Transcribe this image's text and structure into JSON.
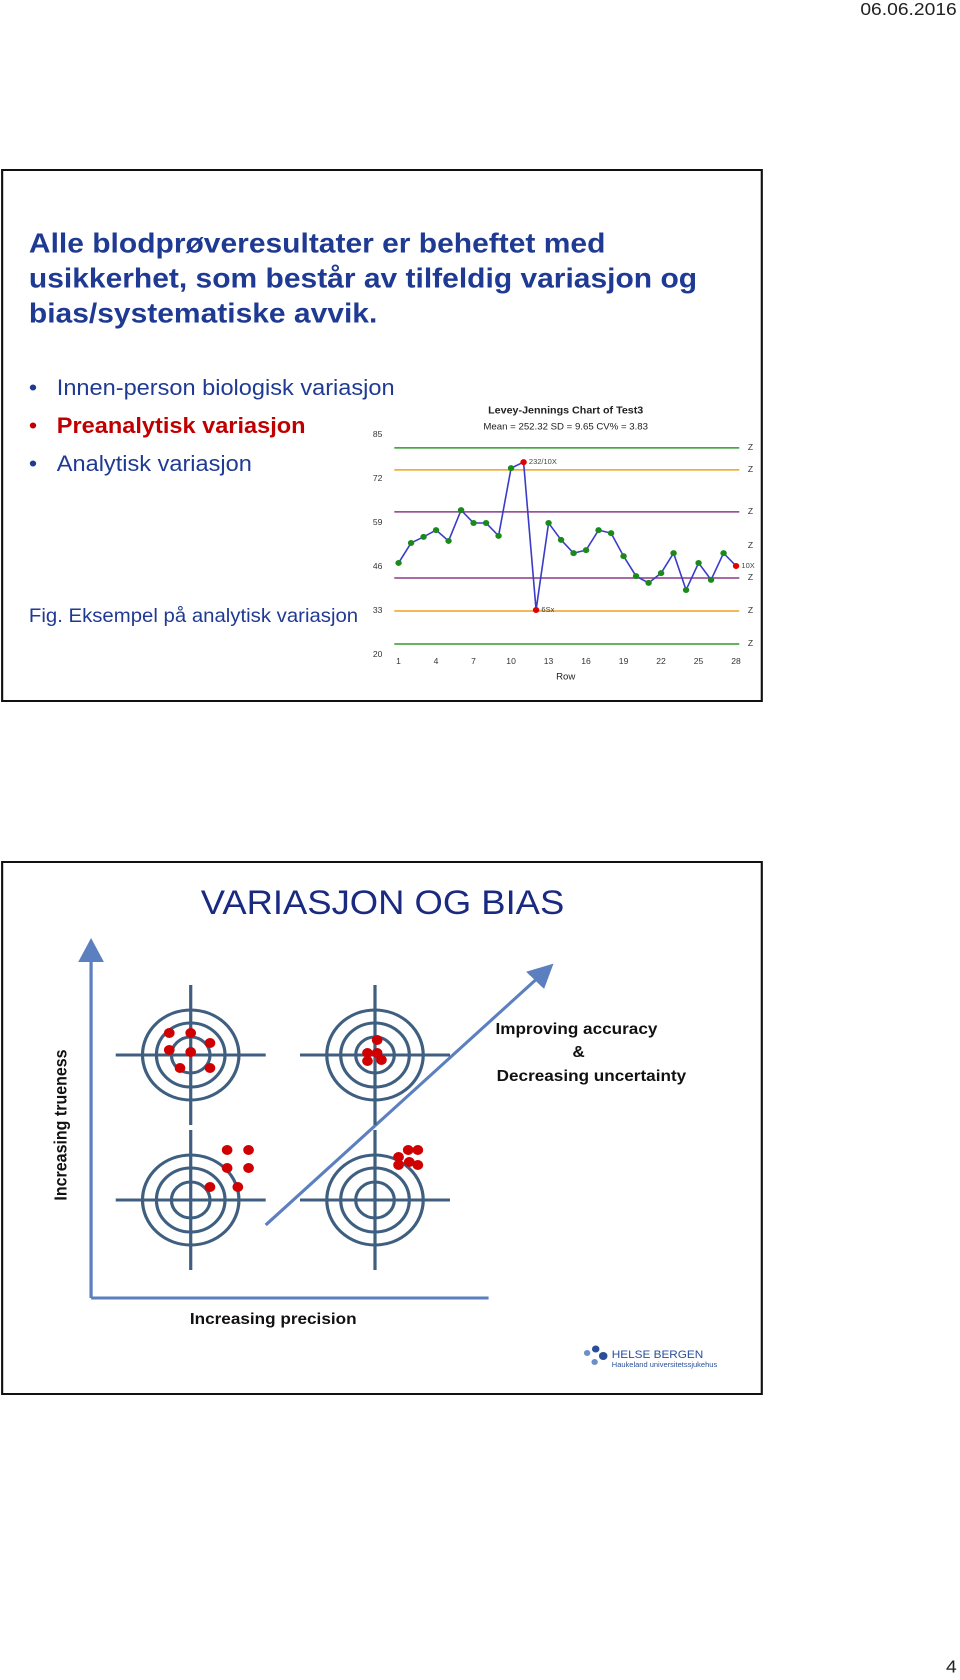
{
  "header": {
    "date": "06.06.2016"
  },
  "slide1": {
    "title_lines": [
      "Alle blodprøveresultater er beheftet med",
      "usikkerhet, som består av tilfeldig variasjon og",
      "bias/systematiske avvik."
    ],
    "bullets": [
      "Innen-person biologisk variasjon",
      "Preanalytisk variasjon",
      "Analytisk variasjon"
    ],
    "caption": "Fig. Eksempel på analytisk variasjon",
    "chart_data": {
      "type": "line",
      "title": "Levey-Jennings Chart of Test3",
      "subtitle": "Mean = 252.32  SD = 9.65  CV% = 3.83",
      "x_label": "Row",
      "x": [
        1,
        2,
        3,
        4,
        5,
        6,
        7,
        8,
        9,
        10,
        11,
        12,
        13,
        14,
        15,
        16,
        17,
        18,
        19,
        20,
        21,
        22,
        23,
        24,
        25,
        26,
        27,
        28
      ],
      "values": [
        47.2,
        53.1,
        54.9,
        56.9,
        53.7,
        62.8,
        59.0,
        59.0,
        55.2,
        75.2,
        77.0,
        33.3,
        59.0,
        54.0,
        50.1,
        51.0,
        56.9,
        56.0,
        49.2,
        43.3,
        41.3,
        44.2,
        50.1,
        39.2,
        47.2,
        42.2,
        50.1,
        46.3
      ],
      "point_colors": [
        "#1a8a1a",
        "#1a8a1a",
        "#1a8a1a",
        "#1a8a1a",
        "#1a8a1a",
        "#1a8a1a",
        "#1a8a1a",
        "#1a8a1a",
        "#1a8a1a",
        "#1a8a1a",
        "#e00000",
        "#e00000",
        "#1a8a1a",
        "#1a8a1a",
        "#1a8a1a",
        "#1a8a1a",
        "#1a8a1a",
        "#1a8a1a",
        "#1a8a1a",
        "#1a8a1a",
        "#1a8a1a",
        "#1a8a1a",
        "#1a8a1a",
        "#1a8a1a",
        "#1a8a1a",
        "#1a8a1a",
        "#1a8a1a",
        "#e00000"
      ],
      "color": "#3b3bc8",
      "xlim": [
        0,
        29
      ],
      "xticks": [
        1,
        4,
        7,
        10,
        13,
        16,
        19,
        22,
        25,
        28
      ],
      "ylim": [
        20,
        85
      ],
      "yticks": [
        85,
        72,
        59,
        46,
        33,
        20
      ],
      "control_lines": [
        {
          "value": 81.2,
          "color": "#2e9a2e"
        },
        {
          "value": 74.7,
          "color": "#f0a020"
        },
        {
          "value": 62.3,
          "color": "#8a3a8a"
        },
        {
          "value": 42.75,
          "color": "#8a3a8a"
        },
        {
          "value": 33,
          "color": "#f0a020"
        },
        {
          "value": 23.25,
          "color": "#2e9a2e"
        }
      ],
      "right_labels": [
        {
          "value": 81.2,
          "label": "Z"
        },
        {
          "value": 74.7,
          "label": "Z"
        },
        {
          "value": 62.3,
          "label": "Z"
        },
        {
          "value": 52.3,
          "label": "Z"
        },
        {
          "value": 42.75,
          "label": "Z"
        },
        {
          "value": 33,
          "label": "Z"
        },
        {
          "value": 23.25,
          "label": "Z"
        }
      ],
      "annotations": [
        {
          "x": 11,
          "text": "232/10X"
        },
        {
          "x": 12,
          "text": "6Sx"
        },
        {
          "x": 28,
          "text": "10X"
        }
      ]
    }
  },
  "slide2": {
    "title": "VARIASJON OG BIAS",
    "y_label": "Increasing trueness",
    "x_label": "Increasing precision",
    "arrow_text": [
      "Improving accuracy",
      "&",
      "Decreasing uncertainty"
    ],
    "logo": {
      "name": "HELSE BERGEN",
      "sub": "Haukeland universitetssjukehus"
    }
  },
  "footer": {
    "page": "4"
  }
}
